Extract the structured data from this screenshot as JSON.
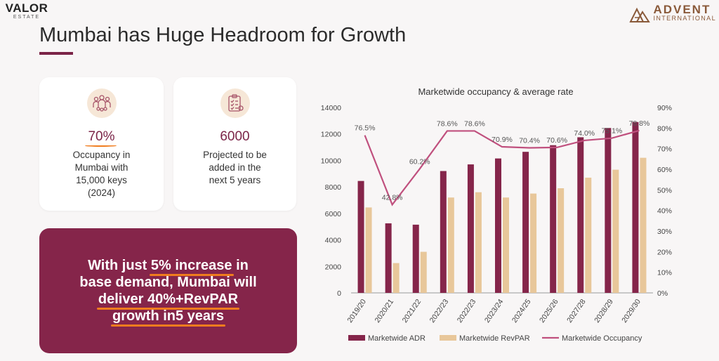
{
  "header": {
    "left_logo_main": "VALOR",
    "left_logo_sub": "ESTATE",
    "right_logo_main": "ADVENT",
    "right_logo_sub": "INTERNATIONAL",
    "title": "Mumbai has Huge Headroom for Growth"
  },
  "cards": [
    {
      "icon": "people-group-icon",
      "value": "70%",
      "desc_lines": [
        "Occupancy in",
        "Mumbai with",
        "15,000 keys",
        "(2024)"
      ]
    },
    {
      "icon": "checklist-icon",
      "value": "6000",
      "desc_lines": [
        "Projected to be",
        "added in the",
        "next 5 years"
      ]
    }
  ],
  "callout": {
    "l1a": "With just ",
    "l1b": "5% increase",
    "l1c": " in",
    "l2": "base demand, Mumbai will",
    "l3a": "deliver 40%+ ",
    "l3b": "RevPAR",
    "l4a": "growth in ",
    "l4b": "5 years"
  },
  "colors": {
    "accent": "#85254a",
    "bar_adr": "#85254a",
    "bar_revpar": "#e8c79a",
    "occupancy_line": "#c0507e",
    "highlight": "#f07c1e"
  },
  "chart_data": {
    "type": "bar",
    "title": "Marketwide occupancy & average rate",
    "categories": [
      "2019/20",
      "2020/21",
      "2021/22",
      "2022/23",
      "2022/23",
      "2023/24",
      "2024/25",
      "2025/26",
      "2027/28",
      "2028/29",
      "2029/30"
    ],
    "series": [
      {
        "name": "Marketwide ADR",
        "type": "bar",
        "axis": "left",
        "values": [
          8450,
          5250,
          5150,
          9200,
          9700,
          10150,
          10650,
          11150,
          11750,
          12450,
          12900
        ]
      },
      {
        "name": "Marketwide RevPAR",
        "type": "bar",
        "axis": "left",
        "values": [
          6450,
          2250,
          3100,
          7200,
          7600,
          7200,
          7500,
          7900,
          8700,
          9300,
          10200
        ]
      },
      {
        "name": "Marketwide Occupancy",
        "type": "line",
        "axis": "right",
        "values": [
          76.5,
          42.8,
          60.2,
          78.6,
          78.6,
          70.9,
          70.4,
          70.6,
          74.0,
          75.1,
          78.8
        ]
      }
    ],
    "occupancy_labels": [
      "76.5%",
      "42.8%",
      "60.2%",
      "78.6%",
      "78.6%",
      "70.9%",
      "70.4%",
      "70.6%",
      "74.0%",
      "75.1%",
      "78.8%"
    ],
    "ylim_left": [
      0,
      14000
    ],
    "yticks_left": [
      "0",
      "2000",
      "4000",
      "6000",
      "8000",
      "10000",
      "12000",
      "14000"
    ],
    "ylim_right": [
      0,
      90
    ],
    "yticks_right": [
      "0%",
      "10%",
      "20%",
      "30%",
      "40%",
      "50%",
      "60%",
      "70%",
      "80%",
      "90%"
    ],
    "legend": [
      "Marketwide ADR",
      "Marketwide RevPAR",
      "Marketwide Occupancy"
    ],
    "legend_position": "bottom",
    "grid": false
  }
}
